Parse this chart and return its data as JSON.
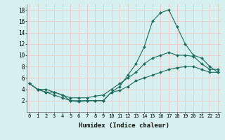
{
  "xlabel": "Humidex (Indice chaleur)",
  "bg_color": "#d6f0f0",
  "grid_color": "#f0c8c8",
  "line_color": "#1a6b5a",
  "series": [
    {
      "x": [
        0,
        1,
        2,
        3,
        4,
        5,
        6,
        7,
        8,
        9,
        10,
        11,
        12,
        13,
        14,
        15,
        16,
        17,
        18,
        19,
        20,
        21,
        22,
        23
      ],
      "y": [
        5,
        4,
        4,
        3.5,
        3,
        2,
        1.8,
        2,
        2,
        2,
        3.5,
        4.5,
        6.5,
        8.5,
        11.5,
        16,
        17.5,
        18,
        15,
        12,
        10,
        9.5,
        8,
        7
      ]
    },
    {
      "x": [
        0,
        1,
        2,
        3,
        4,
        5,
        6,
        7,
        8,
        9,
        10,
        11,
        12,
        13,
        14,
        15,
        16,
        17,
        18,
        19,
        20,
        21,
        22,
        23
      ],
      "y": [
        5,
        4,
        3.5,
        3.5,
        3,
        2.5,
        2.5,
        2.5,
        2.8,
        3,
        4,
        5,
        6,
        7,
        8.5,
        9.5,
        10,
        10.5,
        10,
        10,
        9.8,
        8.5,
        7.5,
        7.5
      ]
    },
    {
      "x": [
        0,
        1,
        2,
        3,
        4,
        5,
        6,
        7,
        8,
        9,
        10,
        11,
        12,
        13,
        14,
        15,
        16,
        17,
        18,
        19,
        20,
        21,
        22,
        23
      ],
      "y": [
        5,
        4,
        3.5,
        3,
        2.5,
        2,
        2,
        2,
        2,
        2,
        3.5,
        3.8,
        4.5,
        5.5,
        6,
        6.5,
        7,
        7.5,
        7.8,
        8,
        8,
        7.5,
        7,
        7
      ]
    }
  ],
  "xlim": [
    0,
    23
  ],
  "ylim": [
    0,
    19
  ],
  "yticks": [
    2,
    4,
    6,
    8,
    10,
    12,
    14,
    16,
    18
  ],
  "xticks": [
    0,
    1,
    2,
    3,
    4,
    5,
    6,
    7,
    8,
    9,
    10,
    11,
    12,
    13,
    14,
    15,
    16,
    17,
    18,
    19,
    20,
    21,
    22,
    23
  ],
  "figsize": [
    3.2,
    2.0
  ],
  "dpi": 100
}
